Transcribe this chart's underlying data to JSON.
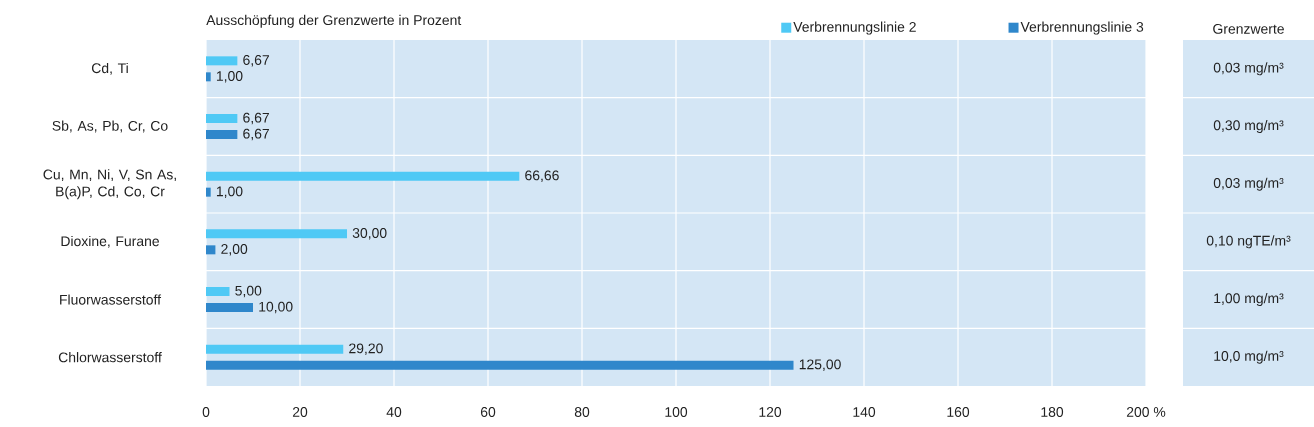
{
  "chart_data": {
    "type": "bar",
    "orientation": "horizontal",
    "title": "Ausschöpfung der Grenzwerte in Prozent",
    "y2label": "Grenzwerte",
    "categories": [
      "Cd, Ti",
      "Sb, As, Pb, Cr, Co",
      "Cu, Mn, Ni, V, Sn As, B(a)P, Cd, Co, Cr",
      "Dioxine, Furane",
      "Fluorwasserstoff",
      "Chlorwasserstoff"
    ],
    "series": [
      {
        "name": "Verbrennungslinie 2",
        "color": "#4fc9f5",
        "values": [
          6.67,
          6.67,
          66.66,
          30.0,
          5.0,
          29.2
        ],
        "value_labels": [
          "6,67",
          "6,67",
          "66,66",
          "30,00",
          "5,00",
          "29,20"
        ]
      },
      {
        "name": "Verbrennungslinie 3",
        "color": "#2f87cb",
        "values": [
          1.0,
          6.67,
          1.0,
          2.0,
          10.0,
          125.0
        ],
        "value_labels": [
          "1,00",
          "6,67",
          "1,00",
          "2,00",
          "10,00",
          "125,00"
        ]
      }
    ],
    "xlim": [
      0,
      200
    ],
    "xticks": [
      0,
      20,
      40,
      60,
      80,
      100,
      120,
      140,
      160,
      180,
      {
        "value": 200,
        "label": "200 %"
      }
    ],
    "grid": true,
    "legend": "top",
    "annotations": [
      "0,03 mg/m³",
      "0,30 mg/m³",
      "0,03 mg/m³",
      "0,10 ngTE/m³",
      "1,00 mg/m³",
      "10,0 mg/m³"
    ]
  }
}
